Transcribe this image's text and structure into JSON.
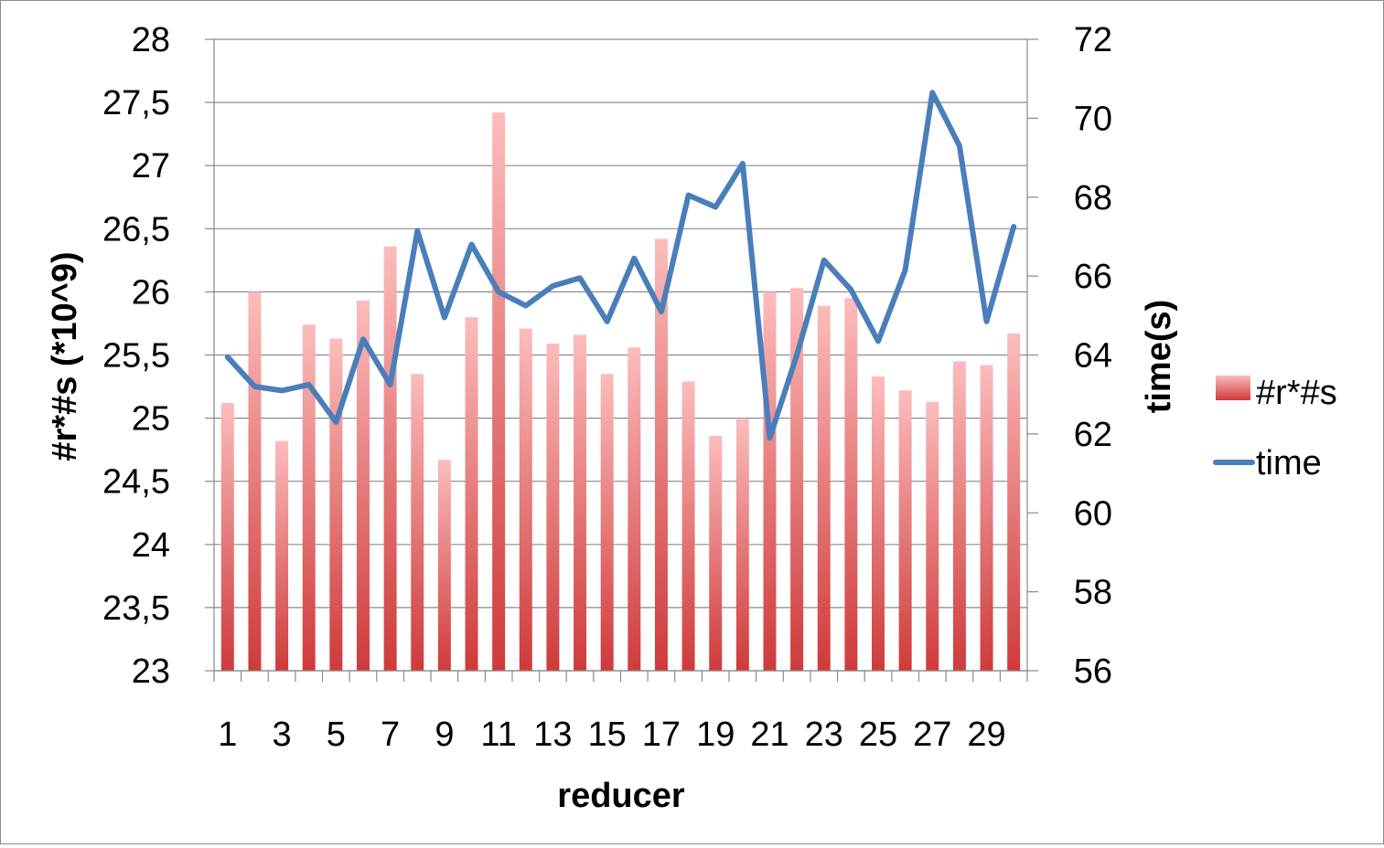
{
  "chart_data": {
    "type": "bar",
    "xlabel": "reducer",
    "ylabel": "#r*#s (*10^9)",
    "y2label": "time(s)",
    "categories": [
      1,
      2,
      3,
      4,
      5,
      6,
      7,
      8,
      9,
      10,
      11,
      12,
      13,
      14,
      15,
      16,
      17,
      18,
      19,
      20,
      21,
      22,
      23,
      24,
      25,
      26,
      27,
      28,
      29,
      30
    ],
    "x_tick_labels": [
      "1",
      "3",
      "5",
      "7",
      "9",
      "11",
      "13",
      "15",
      "17",
      "19",
      "21",
      "23",
      "25",
      "27",
      "29"
    ],
    "ylim": [
      23,
      28
    ],
    "y_tick_labels": [
      "23",
      "23,5",
      "24",
      "24,5",
      "25",
      "25,5",
      "26",
      "26,5",
      "27",
      "27,5",
      "28"
    ],
    "y2lim": [
      56,
      72
    ],
    "y2_tick_labels": [
      "56",
      "58",
      "60",
      "62",
      "64",
      "66",
      "68",
      "70",
      "72"
    ],
    "grid": true,
    "legend_position": "right",
    "series": [
      {
        "name": "#r*#s",
        "type": "bar",
        "axis": "left",
        "color": "#e05555",
        "values": [
          25.12,
          26.0,
          24.82,
          25.74,
          25.63,
          25.93,
          26.36,
          25.35,
          24.67,
          25.8,
          27.42,
          25.71,
          25.59,
          25.66,
          25.35,
          25.56,
          26.42,
          25.29,
          24.86,
          24.99,
          26.0,
          26.03,
          25.89,
          25.95,
          25.33,
          25.22,
          25.13,
          25.45,
          25.42,
          25.67
        ]
      },
      {
        "name": "time",
        "type": "line",
        "axis": "right",
        "color": "#4a7ebb",
        "values": [
          63.95,
          63.2,
          63.1,
          63.25,
          62.3,
          64.4,
          63.25,
          67.15,
          64.95,
          66.8,
          65.6,
          65.25,
          65.75,
          65.95,
          64.85,
          66.45,
          65.1,
          68.05,
          67.75,
          68.85,
          61.9,
          64.0,
          66.4,
          65.65,
          64.35,
          66.15,
          70.65,
          69.3,
          64.85,
          67.25
        ]
      }
    ]
  }
}
